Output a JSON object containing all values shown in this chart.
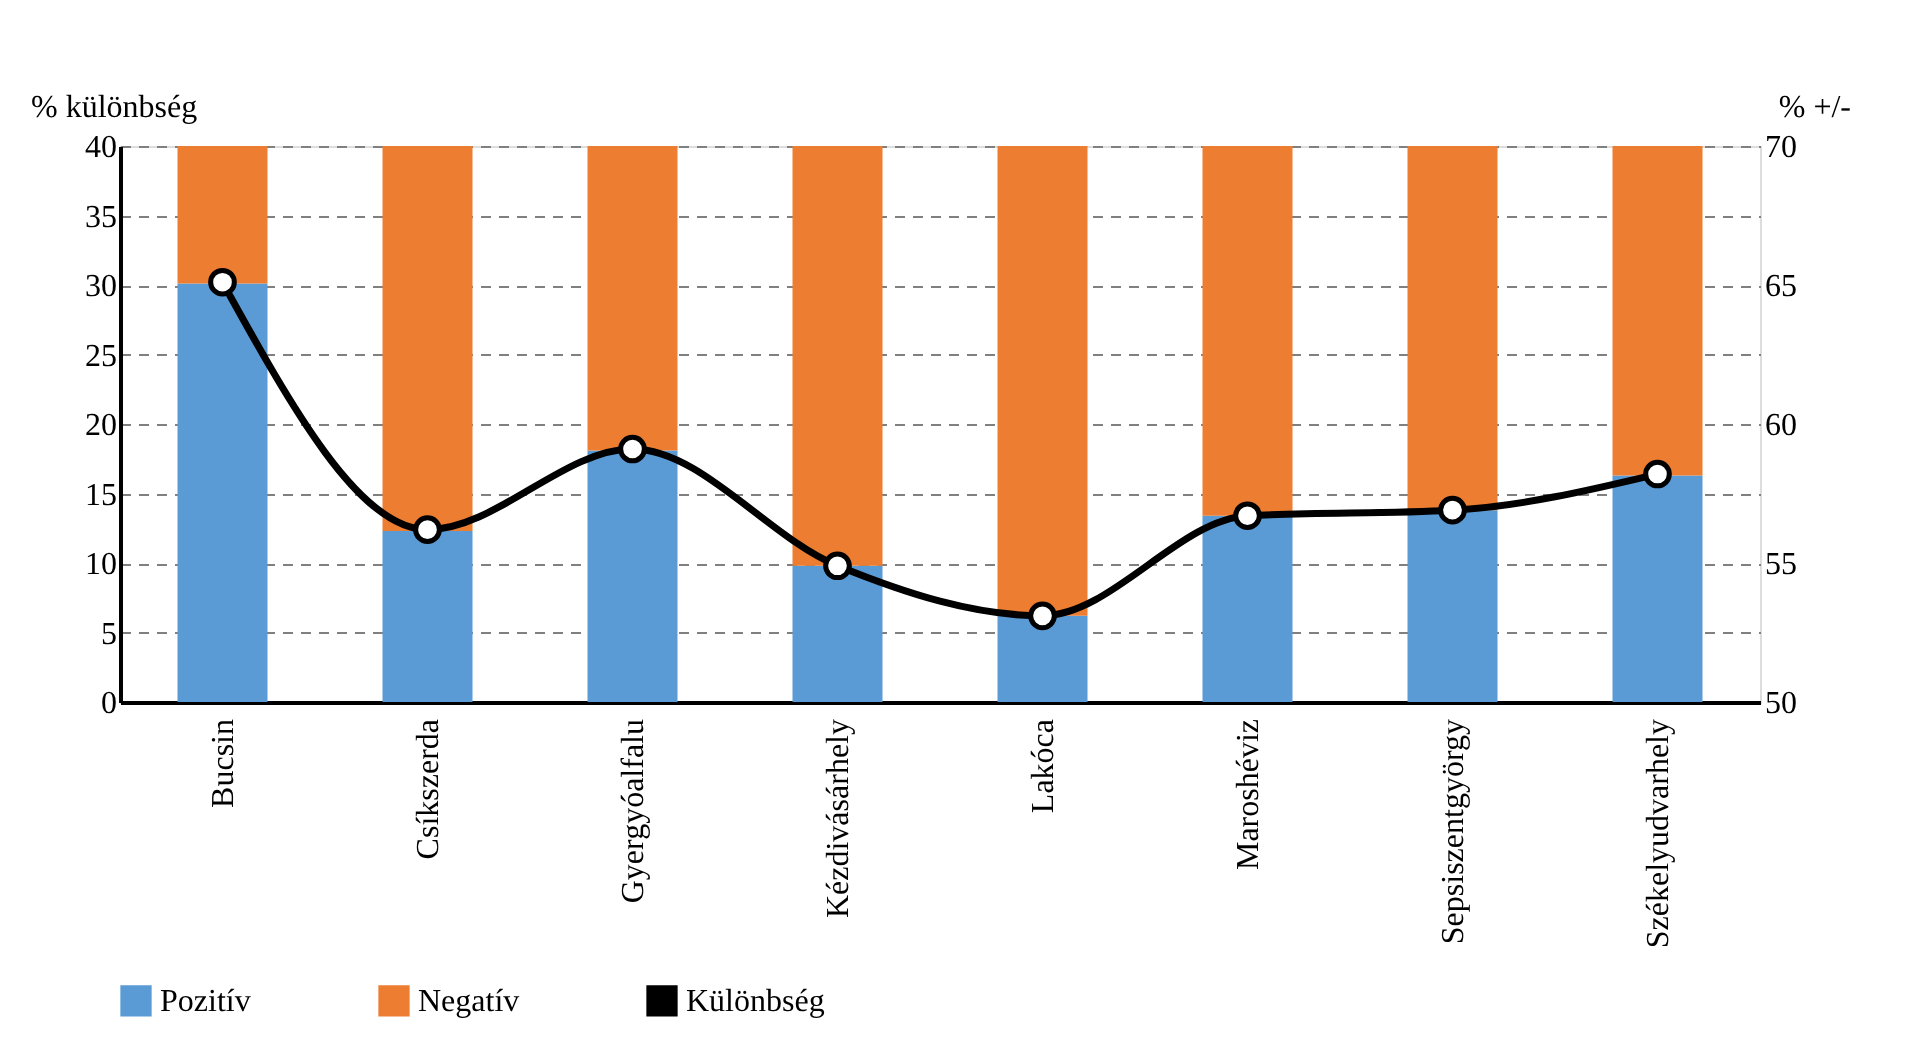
{
  "chart_data": {
    "type": "bar",
    "stacked": true,
    "ylabel": "% különbség",
    "y2label": "% +/-",
    "categories": [
      "Bucsin",
      "Csíkszerda",
      "Gyergyóalfalu",
      "Kézdivásárhely",
      "Lakóca",
      "Maroshéviz",
      "Sepsiszentgyörgy",
      "Székelyudvarhely"
    ],
    "series": [
      {
        "name": "Pozitív",
        "color": "#5b9bd5",
        "values": [
          30.1,
          12.3,
          18.1,
          9.8,
          6.2,
          13.4,
          13.8,
          16.3
        ]
      },
      {
        "name": "Negatív",
        "color": "#ed7d31",
        "values": [
          9.9,
          27.7,
          21.9,
          30.2,
          33.8,
          26.6,
          26.2,
          23.7
        ]
      },
      {
        "name": "Különbség",
        "color": "#000000",
        "type": "line",
        "axis": "y2",
        "marker": "circle",
        "line_style": "solid",
        "values": [
          65.1,
          56.2,
          59.1,
          54.9,
          53.1,
          56.7,
          56.9,
          58.2
        ]
      }
    ],
    "ylim": [
      0,
      40
    ],
    "yticks": [
      0,
      5,
      10,
      15,
      20,
      25,
      30,
      35,
      40
    ],
    "y2lim": [
      50,
      70
    ],
    "y2ticks": [
      50,
      55,
      60,
      65,
      70
    ],
    "grid": "y",
    "legend": "bottom"
  }
}
